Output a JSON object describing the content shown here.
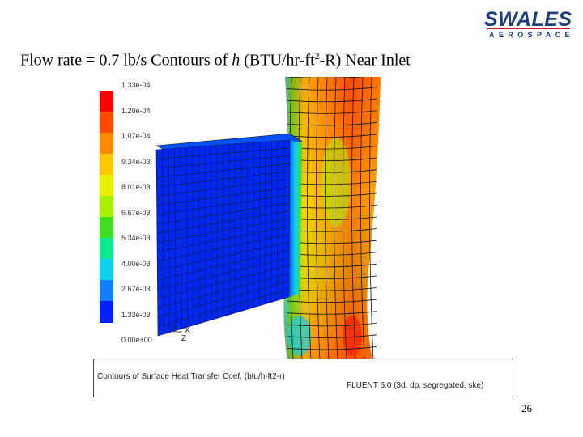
{
  "logo": {
    "main": "SWALES",
    "sub": "AEROSPACE"
  },
  "title": {
    "prefix": "Flow rate = 0.7 lb/s Contours of",
    "symbol": "h",
    "units_before_sup": "(BTU/hr-ft",
    "sup": "2",
    "units_after_sup": "-R) Near Inlet"
  },
  "legend": {
    "labels": [
      "1.33e-04",
      "1.20e-04",
      "1.07e-04",
      "9.34e-03",
      "8.01e-03",
      "6.67e-03",
      "5.34e-03",
      "4.00e-03",
      "2.67e-03",
      "1.33e-03",
      "0.00e+00"
    ],
    "colors": [
      "#ff0000",
      "#ff4a00",
      "#ff8a00",
      "#ffc800",
      "#e8f000",
      "#a8f000",
      "#40dd20",
      "#10e890",
      "#10d0f0",
      "#1080ff",
      "#0020ff"
    ]
  },
  "axes": {
    "x": "X",
    "z": "Z"
  },
  "caption": {
    "left": "Contours of Surface Heat Transfer Coef. (btu/h-ft2-r)",
    "right": "FLUENT 6.0 (3d, dp, segregated, ske)"
  },
  "page_number": "26"
}
